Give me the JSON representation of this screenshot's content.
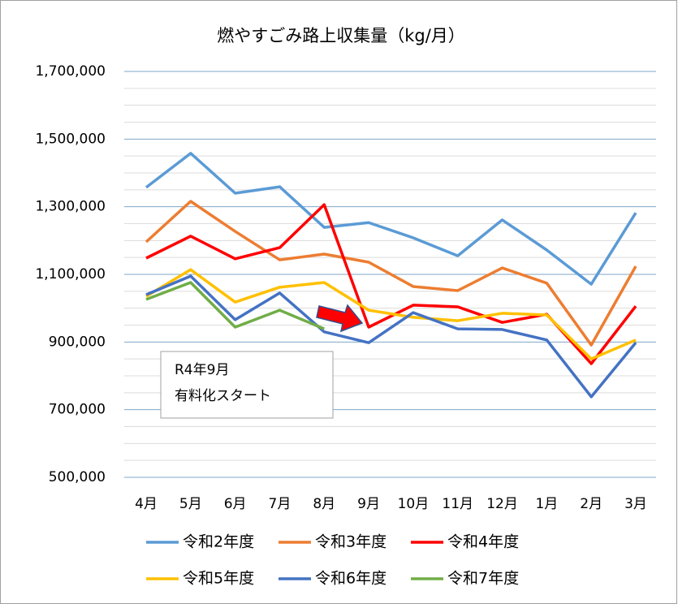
{
  "chart_data": {
    "type": "line",
    "title": "燃やすごみ路上収集量（kg/月）",
    "categories": [
      "4月",
      "5月",
      "6月",
      "7月",
      "8月",
      "9月",
      "10月",
      "11月",
      "12月",
      "1月",
      "2月",
      "3月"
    ],
    "series": [
      {
        "name": "令和2年度",
        "color": "#5b9bd5",
        "values": [
          1357000,
          1458000,
          1340000,
          1359000,
          1239000,
          1253000,
          1208000,
          1155000,
          1261000,
          1172000,
          1071000,
          1282000
        ]
      },
      {
        "name": "令和3年度",
        "color": "#ed7d31",
        "values": [
          1196000,
          1316000,
          1227000,
          1143000,
          1160000,
          1136000,
          1064000,
          1052000,
          1119000,
          1074000,
          891000,
          1124000
        ]
      },
      {
        "name": "令和4年度",
        "color": "#ff0000",
        "values": [
          1148000,
          1213000,
          1146000,
          1179000,
          1306000,
          944000,
          1009000,
          1004000,
          958000,
          982000,
          836000,
          1006000
        ]
      },
      {
        "name": "令和5年度",
        "color": "#ffc000",
        "values": [
          1035000,
          1114000,
          1018000,
          1062000,
          1076000,
          994000,
          973000,
          963000,
          985000,
          980000,
          850000,
          906000
        ]
      },
      {
        "name": "令和6年度",
        "color": "#4472c4",
        "values": [
          1040000,
          1095000,
          966000,
          1045000,
          930000,
          898000,
          987000,
          939000,
          937000,
          906000,
          738000,
          898000
        ]
      },
      {
        "name": "令和7年度",
        "color": "#70ad47",
        "values": [
          1026000,
          1076000,
          944000,
          994000,
          939000,
          null,
          null,
          null,
          null,
          null,
          null,
          null
        ]
      }
    ],
    "ylim": [
      500000,
      1700000
    ],
    "yticks": [
      {
        "value": 500000,
        "label": "500,000"
      },
      {
        "value": 700000,
        "label": "700,000"
      },
      {
        "value": 900000,
        "label": "900,000"
      },
      {
        "value": 1100000,
        "label": "1,100,000"
      },
      {
        "value": 1300000,
        "label": "1,300,000"
      },
      {
        "value": 1500000,
        "label": "1,500,000"
      },
      {
        "value": 1700000,
        "label": "1,700,000"
      }
    ],
    "minor_yticks": [
      550000,
      600000,
      650000,
      750000,
      800000,
      850000,
      950000,
      1000000,
      1050000,
      1150000,
      1200000,
      1250000,
      1350000,
      1400000,
      1450000,
      1550000,
      1600000,
      1650000
    ],
    "grid": true,
    "annotation": [
      "R4年9月",
      "有料化スタート"
    ]
  }
}
